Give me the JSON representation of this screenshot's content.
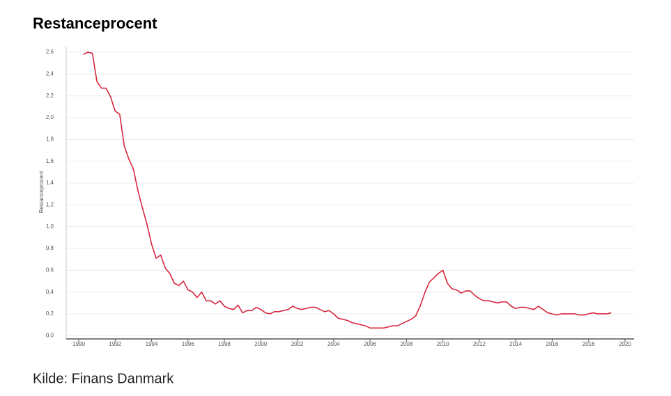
{
  "chart_data": {
    "type": "line",
    "title": "Restanceprocent",
    "ylabel": "Restanceprocent",
    "source": "Kilde: Finans Danmark",
    "x": [
      1990.25,
      1990.5,
      1990.75,
      1991,
      1991.25,
      1991.5,
      1991.75,
      1992,
      1992.25,
      1992.5,
      1992.75,
      1993,
      1993.25,
      1993.5,
      1993.75,
      1994,
      1994.25,
      1994.5,
      1994.75,
      1995,
      1995.25,
      1995.5,
      1995.75,
      1996,
      1996.25,
      1996.5,
      1996.75,
      1997,
      1997.25,
      1997.5,
      1997.75,
      1998,
      1998.25,
      1998.5,
      1998.75,
      1999,
      1999.25,
      1999.5,
      1999.75,
      2000,
      2000.25,
      2000.5,
      2000.75,
      2001,
      2001.25,
      2001.5,
      2001.75,
      2002,
      2002.25,
      2002.5,
      2002.75,
      2003,
      2003.25,
      2003.5,
      2003.75,
      2004,
      2004.25,
      2004.5,
      2004.75,
      2005,
      2005.25,
      2005.5,
      2005.75,
      2006,
      2006.25,
      2006.5,
      2006.75,
      2007,
      2007.25,
      2007.5,
      2007.75,
      2008,
      2008.25,
      2008.5,
      2008.75,
      2009,
      2009.25,
      2009.5,
      2009.75,
      2010,
      2010.25,
      2010.5,
      2010.75,
      2011,
      2011.25,
      2011.5,
      2011.75,
      2012,
      2012.25,
      2012.5,
      2012.75,
      2013,
      2013.25,
      2013.5,
      2013.75,
      2014,
      2014.25,
      2014.5,
      2014.75,
      2015,
      2015.25,
      2015.5,
      2015.75,
      2016,
      2016.25,
      2016.5,
      2016.75,
      2017,
      2017.25,
      2017.5,
      2017.75,
      2018,
      2018.25,
      2018.5,
      2018.75,
      2019,
      2019.25
    ],
    "series": [
      {
        "name": "Restanceprocent",
        "color": "#d7263d",
        "values": [
          2.58,
          2.6,
          2.59,
          2.33,
          2.27,
          2.27,
          2.19,
          2.06,
          2.03,
          1.74,
          1.62,
          1.53,
          1.33,
          1.17,
          1.02,
          0.84,
          0.71,
          0.74,
          0.62,
          0.57,
          0.48,
          0.46,
          0.5,
          0.42,
          0.4,
          0.35,
          0.4,
          0.32,
          0.32,
          0.29,
          0.32,
          0.27,
          0.25,
          0.24,
          0.28,
          0.21,
          0.23,
          0.23,
          0.26,
          0.24,
          0.21,
          0.2,
          0.22,
          0.22,
          0.23,
          0.24,
          0.27,
          0.25,
          0.24,
          0.25,
          0.26,
          0.26,
          0.24,
          0.22,
          0.23,
          0.2,
          0.16,
          0.15,
          0.14,
          0.12,
          0.11,
          0.1,
          0.09,
          0.07,
          0.07,
          0.07,
          0.07,
          0.08,
          0.09,
          0.09,
          0.11,
          0.13,
          0.15,
          0.18,
          0.27,
          0.39,
          0.49,
          0.53,
          0.57,
          0.6,
          0.48,
          0.43,
          0.42,
          0.39,
          0.41,
          0.41,
          0.37,
          0.34,
          0.32,
          0.32,
          0.31,
          0.3,
          0.31,
          0.31,
          0.27,
          0.25,
          0.26,
          0.26,
          0.25,
          0.24,
          0.27,
          0.24,
          0.21,
          0.2,
          0.19,
          0.2,
          0.2,
          0.2,
          0.2,
          0.19,
          0.19,
          0.2,
          0.21,
          0.2,
          0.2,
          0.2,
          0.21
        ]
      }
    ],
    "xlim": [
      1989.31,
      2020.5
    ],
    "xticks": [
      1990,
      1992,
      1994,
      1996,
      1998,
      2000,
      2002,
      2004,
      2006,
      2008,
      2010,
      2012,
      2014,
      2016,
      2018,
      2020
    ],
    "ylim": [
      -0.03,
      2.65
    ],
    "yticks": [
      {
        "value": 0,
        "label": "0,0"
      },
      {
        "value": 0.2,
        "label": "0,2"
      },
      {
        "value": 0.4,
        "label": "0,4"
      },
      {
        "value": 0.6,
        "label": "0,6"
      },
      {
        "value": 0.8,
        "label": "0,8"
      },
      {
        "value": 1.0,
        "label": "1,0"
      },
      {
        "value": 1.2,
        "label": "1,2"
      },
      {
        "value": 1.4,
        "label": "1,4"
      },
      {
        "value": 1.6,
        "label": "1,6"
      },
      {
        "value": 1.8,
        "label": "1,8"
      },
      {
        "value": 2.0,
        "label": "2,0"
      },
      {
        "value": 2.2,
        "label": "2,2"
      },
      {
        "value": 2.4,
        "label": "2,4"
      },
      {
        "value": 2.6,
        "label": "2,6"
      }
    ],
    "grid": true
  }
}
